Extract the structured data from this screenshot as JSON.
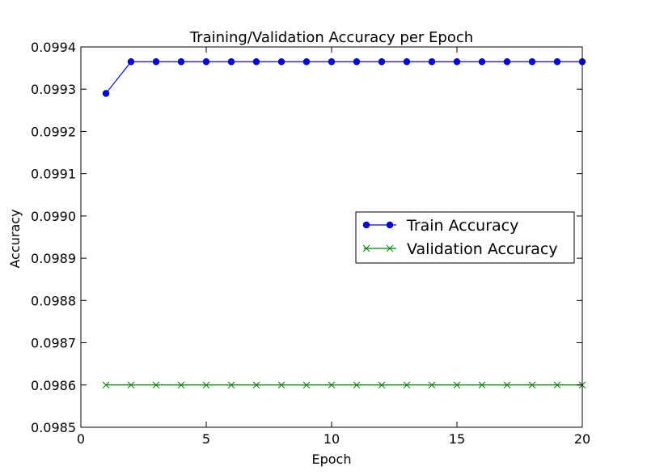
{
  "chart_data": {
    "type": "line",
    "title": "Training/Validation Accuracy per Epoch",
    "xlabel": "Epoch",
    "ylabel": "Accuracy",
    "xlim": [
      0,
      20
    ],
    "ylim": [
      0.0985,
      0.0994
    ],
    "xticks": [
      0,
      5,
      10,
      15,
      20
    ],
    "xtick_labels": [
      "0",
      "5",
      "10",
      "15",
      "20"
    ],
    "yticks": [
      0.0985,
      0.0986,
      0.0987,
      0.0988,
      0.0989,
      0.099,
      0.0991,
      0.0992,
      0.0993,
      0.0994
    ],
    "ytick_labels": [
      "0.0985",
      "0.0986",
      "0.0987",
      "0.0988",
      "0.0989",
      "0.0990",
      "0.0991",
      "0.0992",
      "0.0993",
      "0.0994"
    ],
    "grid": false,
    "legend_position": "center-right",
    "x": [
      1,
      2,
      3,
      4,
      5,
      6,
      7,
      8,
      9,
      10,
      11,
      12,
      13,
      14,
      15,
      16,
      17,
      18,
      19,
      20
    ],
    "series": [
      {
        "name": "Train Accuracy",
        "color": "#0000ff",
        "marker": "circle",
        "values": [
          0.09929,
          0.099365,
          0.099365,
          0.099365,
          0.099365,
          0.099365,
          0.099365,
          0.099365,
          0.099365,
          0.099365,
          0.099365,
          0.099365,
          0.099365,
          0.099365,
          0.099365,
          0.099365,
          0.099365,
          0.099365,
          0.099365,
          0.099365
        ]
      },
      {
        "name": "Validation Accuracy",
        "color": "#008000",
        "marker": "x",
        "values": [
          0.0986,
          0.0986,
          0.0986,
          0.0986,
          0.0986,
          0.0986,
          0.0986,
          0.0986,
          0.0986,
          0.0986,
          0.0986,
          0.0986,
          0.0986,
          0.0986,
          0.0986,
          0.0986,
          0.0986,
          0.0986,
          0.0986,
          0.0986
        ]
      }
    ]
  }
}
